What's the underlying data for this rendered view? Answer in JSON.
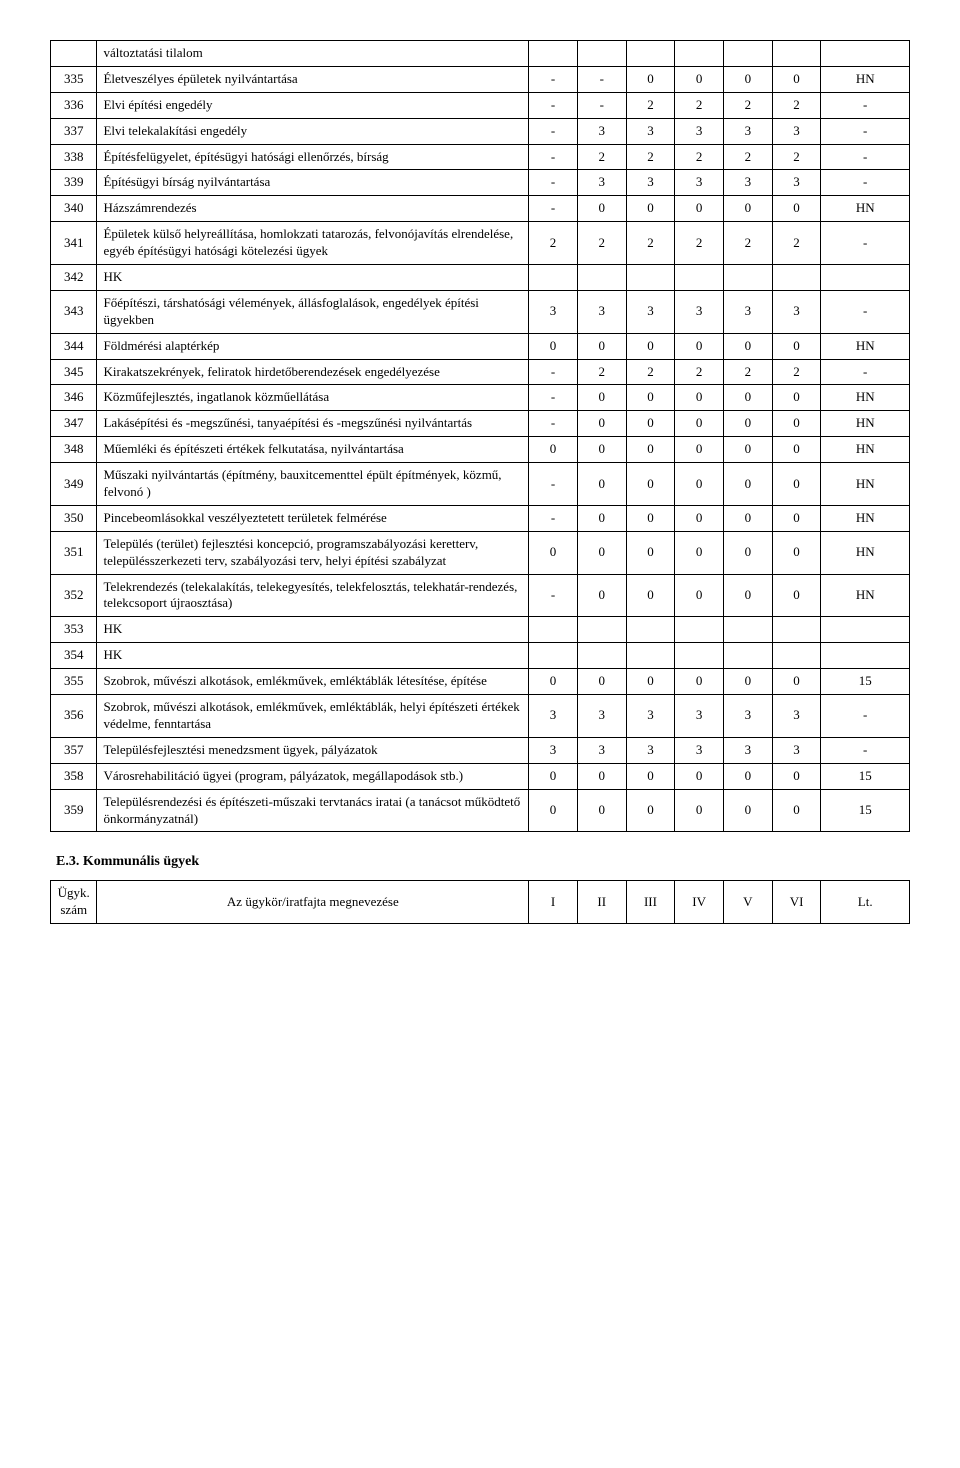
{
  "table1": {
    "rows": [
      {
        "code": "",
        "desc": "változtatási tilalom",
        "vals": [
          "",
          "",
          "",
          "",
          "",
          ""
        ],
        "lt": ""
      },
      {
        "code": "335",
        "desc": "Életveszélyes épületek nyilvántartása",
        "vals": [
          "-",
          "-",
          "0",
          "0",
          "0",
          "0"
        ],
        "lt": "HN"
      },
      {
        "code": "336",
        "desc": "Elvi építési engedély",
        "vals": [
          "-",
          "-",
          "2",
          "2",
          "2",
          "2"
        ],
        "lt": "-"
      },
      {
        "code": "337",
        "desc": "Elvi telekalakítási engedély",
        "vals": [
          "-",
          "3",
          "3",
          "3",
          "3",
          "3"
        ],
        "lt": "-"
      },
      {
        "code": "338",
        "desc": "Építésfelügyelet, építésügyi hatósági ellenőrzés, bírság",
        "vals": [
          "-",
          "2",
          "2",
          "2",
          "2",
          "2"
        ],
        "lt": "-"
      },
      {
        "code": "339",
        "desc": "Építésügyi bírság nyilvántartása",
        "vals": [
          "-",
          "3",
          "3",
          "3",
          "3",
          "3"
        ],
        "lt": "-"
      },
      {
        "code": "340",
        "desc": "Házszámrendezés",
        "vals": [
          "-",
          "0",
          "0",
          "0",
          "0",
          "0"
        ],
        "lt": "HN"
      },
      {
        "code": "341",
        "desc": "Épületek külső helyreállítása, homlokzati tatarozás, felvonójavítás elrendelése, egyéb építésügyi hatósági kötelezési ügyek",
        "vals": [
          "2",
          "2",
          "2",
          "2",
          "2",
          "2"
        ],
        "lt": "-"
      },
      {
        "code": "342",
        "desc": "HK",
        "vals": [
          "",
          "",
          "",
          "",
          "",
          ""
        ],
        "lt": ""
      },
      {
        "code": "343",
        "desc": "Főépítészi, társhatósági vélemények, állásfoglalások, engedélyek építési ügyekben",
        "vals": [
          "3",
          "3",
          "3",
          "3",
          "3",
          "3"
        ],
        "lt": "-"
      },
      {
        "code": "344",
        "desc": "Földmérési alaptérkép",
        "vals": [
          "0",
          "0",
          "0",
          "0",
          "0",
          "0"
        ],
        "lt": "HN"
      },
      {
        "code": "345",
        "desc": "Kirakatszekrények, feliratok hirdetőberendezések engedélyezése",
        "vals": [
          "-",
          "2",
          "2",
          "2",
          "2",
          "2"
        ],
        "lt": "-"
      },
      {
        "code": "346",
        "desc": "Közműfejlesztés, ingatlanok közműellátása",
        "vals": [
          "-",
          "0",
          "0",
          "0",
          "0",
          "0"
        ],
        "lt": "HN"
      },
      {
        "code": "347",
        "desc": "Lakásépítési és -megszűnési, tanyaépítési és -megszűnési nyilvántartás",
        "vals": [
          "-",
          "0",
          "0",
          "0",
          "0",
          "0"
        ],
        "lt": "HN"
      },
      {
        "code": "348",
        "desc": "Műemléki és építészeti értékek felkutatása, nyilvántartása",
        "vals": [
          "0",
          "0",
          "0",
          "0",
          "0",
          "0"
        ],
        "lt": "HN"
      },
      {
        "code": "349",
        "desc": "Műszaki nyilvántartás (építmény, bauxitcementtel épült építmények, közmű, felvonó )",
        "vals": [
          "-",
          "0",
          "0",
          "0",
          "0",
          "0"
        ],
        "lt": "HN"
      },
      {
        "code": "350",
        "desc": "Pincebeomlásokkal veszélyeztetett területek felmérése",
        "vals": [
          "-",
          "0",
          "0",
          "0",
          "0",
          "0"
        ],
        "lt": "HN"
      },
      {
        "code": "351",
        "desc": "Település (terület) fejlesztési koncepció, programszabályozási keretterv, településszerkezeti terv, szabályozási terv, helyi építési szabályzat",
        "vals": [
          "0",
          "0",
          "0",
          "0",
          "0",
          "0"
        ],
        "lt": "HN"
      },
      {
        "code": "352",
        "desc": "Telekrendezés (telekalakítás, telekegyesítés, telekfelosztás, telekhatár-rendezés, telekcsoport újraosztása)",
        "vals": [
          "-",
          "0",
          "0",
          "0",
          "0",
          "0"
        ],
        "lt": "HN"
      },
      {
        "code": "353",
        "desc": "HK",
        "vals": [
          "",
          "",
          "",
          "",
          "",
          ""
        ],
        "lt": ""
      },
      {
        "code": "354",
        "desc": "HK",
        "vals": [
          "",
          "",
          "",
          "",
          "",
          ""
        ],
        "lt": ""
      },
      {
        "code": "355",
        "desc": "Szobrok, művészi alkotások, emlékművek, emléktáblák létesítése, építése",
        "vals": [
          "0",
          "0",
          "0",
          "0",
          "0",
          "0"
        ],
        "lt": "15"
      },
      {
        "code": "356",
        "desc": "Szobrok, művészi alkotások, emlékművek, emléktáblák, helyi építészeti értékek védelme, fenntartása",
        "vals": [
          "3",
          "3",
          "3",
          "3",
          "3",
          "3"
        ],
        "lt": "-"
      },
      {
        "code": "357",
        "desc": "Településfejlesztési menedzsment ügyek, pályázatok",
        "vals": [
          "3",
          "3",
          "3",
          "3",
          "3",
          "3"
        ],
        "lt": "-"
      },
      {
        "code": "358",
        "desc": "Városrehabilitáció ügyei (program, pályázatok, megállapodások stb.)",
        "vals": [
          "0",
          "0",
          "0",
          "0",
          "0",
          "0"
        ],
        "lt": "15"
      },
      {
        "code": "359",
        "desc": "Településrendezési és építészeti-műszaki tervtanács iratai (a tanácsot működtető önkormányzatnál)",
        "vals": [
          "0",
          "0",
          "0",
          "0",
          "0",
          "0"
        ],
        "lt": "15"
      }
    ]
  },
  "section_heading": "E.3. Kommunális ügyek",
  "table2": {
    "header": {
      "c1": "Ügyk. szám",
      "c2": "Az ügykör/iratfajta megnevezése",
      "cols": [
        "I",
        "II",
        "III",
        "IV",
        "V",
        "VI"
      ],
      "lt": "Lt."
    }
  }
}
